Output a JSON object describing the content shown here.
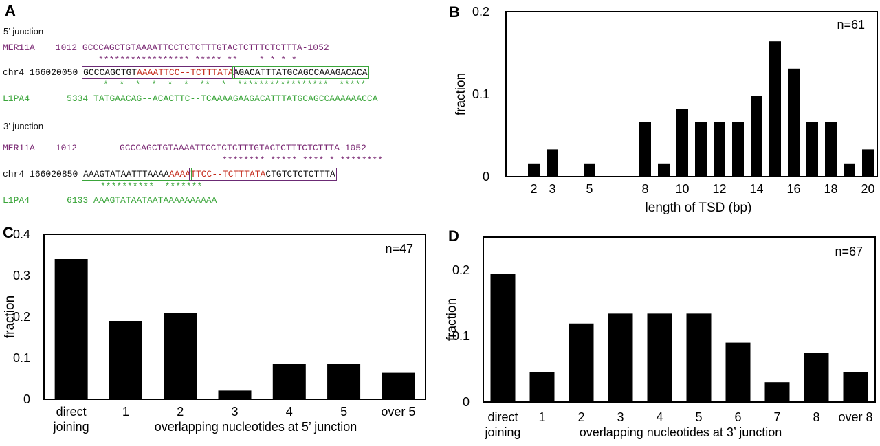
{
  "panels": {
    "A": "A",
    "B": "B",
    "C": "C",
    "D": "D"
  },
  "alignment": {
    "junction5": {
      "title": "5’ junction",
      "mer_name": "MER11A",
      "mer_start": "1012",
      "mer_seq": "GCCCAGCTGTAAAATTCCTCTCTTTGTACTCTTTCTCTTTA-1052",
      "mer_stars": "***************** ***** **    * * * *",
      "chr_name": "chr4",
      "chr_pos": "166020050",
      "chr_seq_a": "GCCCAGCTGT",
      "chr_seq_b": "AAAATTCC--TCTTTATA",
      "chr_seq_c": "AGACATTTATGCAGCCAAAGACACA",
      "l1_stars": "*  *  *  *  *  *  **  *  *****************  *****",
      "l1_name": "L1PA4",
      "l1_start": "5334",
      "l1_seq": "TATGAACAG--ACACTTC--TCAAAAGAAGACATTTATGCAGCCAAAAAACCA"
    },
    "junction3": {
      "title": "3’ junction",
      "mer_name": "MER11A",
      "mer_start": "1012",
      "mer_seq": "GCCCAGCTGTAAAATTCCTCTCTTTGTACTCTTTCTCTTTA-1052",
      "mer_stars": "******** ***** **** * ********",
      "chr_name": "chr4",
      "chr_pos": "166020850",
      "chr_seq_a": "AAAGTATAATTTAAAA",
      "chr_seq_b": "AAAA",
      "chr_seq_c": "TTCC--TCTTTATA",
      "chr_seq_d": "CTGTCTCTCTTTA",
      "l1_stars": "**********  *******",
      "l1_name": "L1PA4",
      "l1_start": "6133",
      "l1_seq": "AAAGTATAATAATAAAAAAAAAA"
    }
  },
  "chart_data": [
    {
      "panel": "B",
      "type": "bar",
      "xlabel": "length of TSD (bp)",
      "ylabel": "fraction",
      "annotation": "n=61",
      "x": [
        2,
        3,
        5,
        8,
        9,
        10,
        11,
        12,
        13,
        14,
        15,
        16,
        17,
        18,
        19,
        20
      ],
      "values": [
        0.016,
        0.033,
        0.016,
        0.066,
        0.016,
        0.082,
        0.066,
        0.066,
        0.066,
        0.098,
        0.164,
        0.131,
        0.066,
        0.066,
        0.016,
        0.033
      ],
      "xtick_labels": [
        "2",
        "3",
        "5",
        "8",
        "10",
        "12",
        "14",
        "16",
        "18",
        "20"
      ],
      "xticks": [
        2,
        3,
        5,
        8,
        10,
        12,
        14,
        16,
        18,
        20
      ],
      "yticks": [
        0,
        0.1,
        0.2
      ],
      "ytick_labels": [
        "0",
        "0.1",
        "0.2"
      ],
      "xlim": [
        0.5,
        20.5
      ],
      "ylim": [
        0,
        0.2
      ],
      "color": "#000000"
    },
    {
      "panel": "C",
      "type": "bar",
      "xlabel": "overlapping nucleotides at 5’ junction",
      "ylabel": "fraction",
      "annotation": "n=47",
      "categories": [
        "direct joining",
        "1",
        "2",
        "3",
        "4",
        "5",
        "over 5"
      ],
      "category_lines": [
        [
          "direct",
          "joining"
        ],
        [
          "1"
        ],
        [
          "2"
        ],
        [
          "3"
        ],
        [
          "4"
        ],
        [
          "5"
        ],
        [
          "over 5"
        ]
      ],
      "values": [
        0.34,
        0.19,
        0.21,
        0.021,
        0.085,
        0.085,
        0.064
      ],
      "yticks": [
        0,
        0.1,
        0.2,
        0.3,
        0.4
      ],
      "ytick_labels": [
        "0",
        "0.1",
        "0.2",
        "0.3",
        "0.4"
      ],
      "ylim": [
        0,
        0.4
      ],
      "color": "#000000"
    },
    {
      "panel": "D",
      "type": "bar",
      "xlabel": "overlapping nucleotides at 3’ junction",
      "ylabel": "fraction",
      "annotation": "n=67",
      "categories": [
        "direct joining",
        "1",
        "2",
        "3",
        "4",
        "5",
        "6",
        "7",
        "8",
        "over 8"
      ],
      "category_lines": [
        [
          "direct",
          "joining"
        ],
        [
          "1"
        ],
        [
          "2"
        ],
        [
          "3"
        ],
        [
          "4"
        ],
        [
          "5"
        ],
        [
          "6"
        ],
        [
          "7"
        ],
        [
          "8"
        ],
        [
          "over 8"
        ]
      ],
      "values": [
        0.194,
        0.045,
        0.119,
        0.134,
        0.134,
        0.134,
        0.09,
        0.03,
        0.075,
        0.045
      ],
      "yticks": [
        0,
        0.1,
        0.2
      ],
      "ytick_labels": [
        "0",
        "0.1",
        "0.2"
      ],
      "ylim": [
        0,
        0.25
      ],
      "color": "#000000"
    }
  ]
}
